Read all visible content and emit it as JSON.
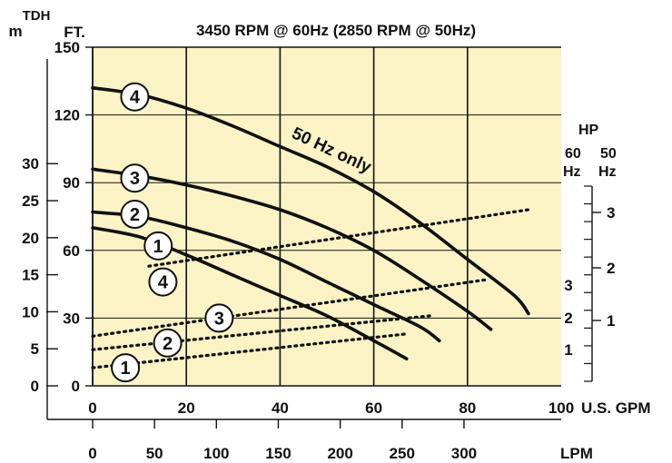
{
  "chart_data": {
    "type": "line",
    "title": "3450 RPM @ 60Hz   (2850 RPM @ 50Hz)",
    "left_axis_unit_m": "m",
    "left_axis_header_tdh": "TDH",
    "left_axis_unit_ft": "FT.",
    "bottom_axis_unit_gpm": "U.S. GPM",
    "bottom_axis_unit_lpm": "LPM",
    "right_axis_header_hp": "HP",
    "right_axis_header_60": "60",
    "right_axis_header_hz60": "Hz",
    "right_axis_header_50": "50",
    "right_axis_header_hz50": "Hz",
    "annotation": "50 Hz only",
    "x_gpm_ticks": [
      "0",
      "20",
      "40",
      "60",
      "80",
      "100"
    ],
    "x_lpm_ticks": [
      "0",
      "50",
      "100",
      "150",
      "200",
      "250",
      "300"
    ],
    "y_ft_ticks": [
      "0",
      "30",
      "60",
      "90",
      "120",
      "150"
    ],
    "y_m_ticks": [
      "0",
      "5",
      "10",
      "15",
      "20",
      "25",
      "30"
    ],
    "hp60_ticks": [
      "1",
      "2",
      "3"
    ],
    "hp50_ticks": [
      "1",
      "2",
      "3"
    ],
    "xlim_gpm": [
      0,
      100
    ],
    "ylim_ft": [
      0,
      150
    ],
    "grid": true,
    "background": "#fbf3c6",
    "curve_color": "#111111",
    "head_curves": [
      {
        "label": "1",
        "x": [
          0,
          10,
          20,
          30,
          40,
          50,
          60,
          67
        ],
        "y": [
          70,
          66,
          58,
          49,
          40,
          31,
          20,
          12
        ]
      },
      {
        "label": "2",
        "x": [
          0,
          10,
          20,
          30,
          40,
          50,
          60,
          70,
          74
        ],
        "y": [
          77,
          75,
          70,
          64,
          56,
          46,
          36,
          26,
          20
        ]
      },
      {
        "label": "3",
        "x": [
          0,
          10,
          20,
          30,
          40,
          50,
          60,
          70,
          80,
          85
        ],
        "y": [
          96,
          93,
          89,
          84,
          78,
          70,
          60,
          47,
          33,
          25
        ]
      },
      {
        "label": "4",
        "x": [
          0,
          10,
          20,
          30,
          40,
          50,
          60,
          70,
          80,
          90,
          93
        ],
        "y": [
          132,
          129,
          123,
          115,
          106,
          97,
          86,
          72,
          56,
          40,
          32
        ]
      }
    ],
    "power_curves": [
      {
        "label": "1",
        "x": [
          0,
          67
        ],
        "y": [
          8,
          23
        ]
      },
      {
        "label": "2",
        "x": [
          0,
          72
        ],
        "y": [
          16,
          31
        ]
      },
      {
        "label": "3",
        "x": [
          0,
          84
        ],
        "y": [
          22,
          47
        ]
      },
      {
        "label": "4",
        "x": [
          12,
          93
        ],
        "y": [
          53,
          78
        ]
      }
    ],
    "head_markers": [
      {
        "label": "4",
        "x": 9,
        "y": 128
      },
      {
        "label": "3",
        "x": 9,
        "y": 92
      },
      {
        "label": "2",
        "x": 9,
        "y": 76
      },
      {
        "label": "1",
        "x": 14,
        "y": 62
      }
    ],
    "power_markers": [
      {
        "label": "4",
        "x": 15,
        "y": 46
      },
      {
        "label": "3",
        "x": 27,
        "y": 30
      },
      {
        "label": "2",
        "x": 16,
        "y": 19
      },
      {
        "label": "1",
        "x": 7,
        "y": 8
      }
    ]
  }
}
